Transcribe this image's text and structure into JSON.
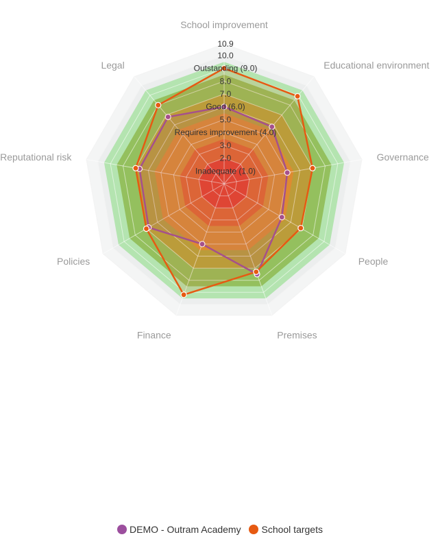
{
  "chart_data": {
    "type": "radar",
    "axes": [
      "School improvement",
      "Educational environment",
      "Governance",
      "People",
      "Premises",
      "Finance",
      "Policies",
      "Reputational risk",
      "Legal"
    ],
    "ring_values": [
      1,
      2,
      3,
      4,
      5,
      6,
      7,
      8,
      9,
      10,
      10.9
    ],
    "ring_labels": [
      {
        "value": 10.9,
        "label": "10.9"
      },
      {
        "value": 10.0,
        "label": "10.0"
      },
      {
        "value": 9.0,
        "label": "Outstanding (9.0)"
      },
      {
        "value": 8.0,
        "label": "8.0"
      },
      {
        "value": 7.0,
        "label": "7.0"
      },
      {
        "value": 6.0,
        "label": "Good (6.0)"
      },
      {
        "value": 5.0,
        "label": "5.0"
      },
      {
        "value": 4.0,
        "label": "Requires improvement (4.0)"
      },
      {
        "value": 3.0,
        "label": "3.0"
      },
      {
        "value": 2.0,
        "label": "2.0"
      },
      {
        "value": 1.0,
        "label": "Inadequate (1.0)"
      }
    ],
    "bands": [
      {
        "from": 0,
        "to": 2,
        "color": "#e8412c"
      },
      {
        "from": 2,
        "to": 3.5,
        "color": "#e46a30"
      },
      {
        "from": 3.5,
        "to": 5.5,
        "color": "#dc9236"
      },
      {
        "from": 5.5,
        "to": 7,
        "color": "#b5a640"
      },
      {
        "from": 7,
        "to": 8.5,
        "color": "#94c05e"
      },
      {
        "from": 8.5,
        "to": 9.5,
        "color": "#b4e4b0"
      }
    ],
    "series": [
      {
        "name": "DEMO - Outram Academy",
        "color": "#9c4f9e",
        "values": [
          6.0,
          5.8,
          5.0,
          5.2,
          7.5,
          5.0,
          6.8,
          6.7,
          6.8
        ]
      },
      {
        "name": "School targets",
        "color": "#e65a12",
        "values": [
          9.0,
          8.9,
          7.0,
          6.9,
          7.3,
          9.2,
          7.0,
          7.0,
          8.0
        ]
      }
    ],
    "rmax": 10.9
  },
  "legend": {
    "items": [
      {
        "label": "DEMO - Outram Academy",
        "color": "#9c4f9e"
      },
      {
        "label": "School targets",
        "color": "#e65a12"
      }
    ]
  }
}
